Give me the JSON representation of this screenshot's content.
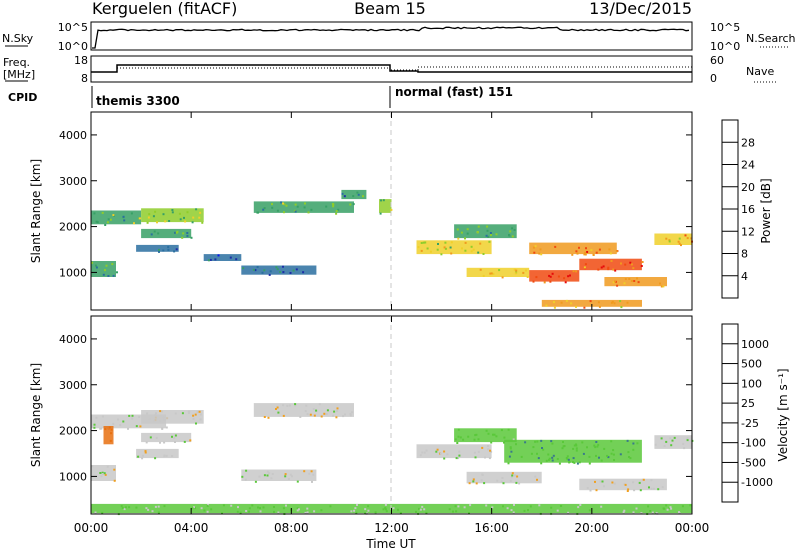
{
  "header": {
    "station": "Kerguelen (fitACF)",
    "beam": "Beam 15",
    "date": "13/Dec/2015"
  },
  "top_panels": {
    "nsky_label": "N.Sky",
    "nsearch_label": "N.Search",
    "noise_ticks_left": [
      "10^5",
      "10^0"
    ],
    "noise_ticks_right": [
      "10^5",
      "10^0"
    ],
    "freq_label_line1": "Freq.",
    "freq_label_line2": "[MHz]",
    "freq_ticks": [
      "18",
      "8"
    ],
    "nave_label": "Nave",
    "nave_ticks": [
      "60",
      "0"
    ],
    "cpid_label": "CPID",
    "cpid_segments": [
      {
        "label": "themis 3300",
        "start_hour": 0
      },
      {
        "label": "normal (fast) 151",
        "start_hour": 12
      }
    ]
  },
  "chart_data": [
    {
      "type": "heatmap",
      "ylabel": "Slant Range [km]",
      "xlabel": "",
      "x_range_hours": [
        0,
        24
      ],
      "ylim": [
        180,
        4500
      ],
      "y_ticks": [
        1000,
        2000,
        3000,
        4000
      ],
      "colorbar": {
        "label": "Power [dB]",
        "range": [
          0,
          32
        ],
        "ticks": [
          4,
          8,
          12,
          16,
          20,
          24,
          28
        ],
        "colors": [
          "#0a14f0",
          "#1d2ea8",
          "#2a6fa0",
          "#37a065",
          "#8fcd2a",
          "#f0d02a",
          "#f09a1e",
          "#f04a10",
          "#e60a0a"
        ]
      },
      "echo_regions": [
        {
          "t0": 0.0,
          "t1": 2.0,
          "r0": 2050,
          "r1": 2350,
          "value": 14
        },
        {
          "t0": 2.0,
          "t1": 4.5,
          "r0": 2100,
          "r1": 2400,
          "value": 16
        },
        {
          "t0": 2.0,
          "t1": 4.0,
          "r0": 1750,
          "r1": 1950,
          "value": 12
        },
        {
          "t0": 1.8,
          "t1": 3.5,
          "r0": 1450,
          "r1": 1600,
          "value": 9
        },
        {
          "t0": 0.0,
          "t1": 1.0,
          "r0": 900,
          "r1": 1250,
          "value": 13
        },
        {
          "t0": 4.5,
          "t1": 6.0,
          "r0": 1250,
          "r1": 1400,
          "value": 8
        },
        {
          "t0": 6.0,
          "t1": 9.0,
          "r0": 950,
          "r1": 1150,
          "value": 9
        },
        {
          "t0": 6.5,
          "t1": 10.5,
          "r0": 2300,
          "r1": 2550,
          "value": 14
        },
        {
          "t0": 10.0,
          "t1": 11.0,
          "r0": 2600,
          "r1": 2800,
          "value": 12
        },
        {
          "t0": 11.5,
          "t1": 12.0,
          "r0": 2300,
          "r1": 2600,
          "value": 17
        },
        {
          "t0": 13.0,
          "t1": 16.0,
          "r0": 1400,
          "r1": 1700,
          "value": 18
        },
        {
          "t0": 14.5,
          "t1": 17.0,
          "r0": 1750,
          "r1": 2050,
          "value": 14
        },
        {
          "t0": 15.0,
          "t1": 17.5,
          "r0": 900,
          "r1": 1100,
          "value": 20
        },
        {
          "t0": 17.5,
          "t1": 21.0,
          "r0": 1400,
          "r1": 1650,
          "value": 24
        },
        {
          "t0": 17.5,
          "t1": 19.5,
          "r0": 800,
          "r1": 1050,
          "value": 28
        },
        {
          "t0": 19.5,
          "t1": 22.0,
          "r0": 1050,
          "r1": 1300,
          "value": 26
        },
        {
          "t0": 20.5,
          "t1": 23.0,
          "r0": 700,
          "r1": 900,
          "value": 24
        },
        {
          "t0": 22.5,
          "t1": 24.0,
          "r0": 1600,
          "r1": 1850,
          "value": 20
        },
        {
          "t0": 18.0,
          "t1": 22.0,
          "r0": 250,
          "r1": 400,
          "value": 22
        }
      ]
    },
    {
      "type": "heatmap",
      "ylabel": "Slant Range [km]",
      "xlabel": "Time UT",
      "x_range_hours": [
        0,
        24
      ],
      "x_ticks": [
        "00:00",
        "04:00",
        "08:00",
        "12:00",
        "16:00",
        "20:00",
        "00:00"
      ],
      "ylim": [
        180,
        4500
      ],
      "y_ticks": [
        1000,
        2000,
        3000,
        4000
      ],
      "colorbar": {
        "label": "Velocity [m s⁻¹]",
        "tick_labels": [
          "1000",
          "500",
          "100",
          "25",
          "-25",
          "-100",
          "-500",
          "-1000"
        ],
        "colors": [
          "#1a3a9a",
          "#3a7a8a",
          "#2a8a4a",
          "#5ac83a",
          "#c8c8c8",
          "#c8c8c8",
          "#f0a020",
          "#e87010",
          "#e03010",
          "#e01010"
        ]
      },
      "echo_regions": [
        {
          "t0": 0.0,
          "t1": 3.0,
          "r0": 2050,
          "r1": 2350,
          "value": 0
        },
        {
          "t0": 2.0,
          "t1": 4.5,
          "r0": 2150,
          "r1": 2450,
          "value": 0
        },
        {
          "t0": 2.0,
          "t1": 4.0,
          "r0": 1750,
          "r1": 1950,
          "value": 0
        },
        {
          "t0": 1.8,
          "t1": 3.5,
          "r0": 1400,
          "r1": 1600,
          "value": 0
        },
        {
          "t0": 0.0,
          "t1": 1.0,
          "r0": 900,
          "r1": 1250,
          "value": 0
        },
        {
          "t0": 0.5,
          "t1": 0.9,
          "r0": 1700,
          "r1": 2100,
          "value": -300
        },
        {
          "t0": 6.0,
          "t1": 9.0,
          "r0": 900,
          "r1": 1150,
          "value": 0
        },
        {
          "t0": 6.5,
          "t1": 10.5,
          "r0": 2300,
          "r1": 2600,
          "value": 0
        },
        {
          "t0": 13.0,
          "t1": 16.0,
          "r0": 1400,
          "r1": 1700,
          "value": 0
        },
        {
          "t0": 14.5,
          "t1": 17.0,
          "r0": 1750,
          "r1": 2050,
          "value": 60
        },
        {
          "t0": 16.5,
          "t1": 22.0,
          "r0": 1300,
          "r1": 1800,
          "value": 80
        },
        {
          "t0": 15.0,
          "t1": 18.0,
          "r0": 850,
          "r1": 1100,
          "value": 0
        },
        {
          "t0": 19.5,
          "t1": 23.0,
          "r0": 700,
          "r1": 950,
          "value": 0
        },
        {
          "t0": 22.5,
          "t1": 24.0,
          "r0": 1600,
          "r1": 1900,
          "value": 20
        },
        {
          "t0": 0.0,
          "t1": 24.0,
          "r0": 200,
          "r1": 400,
          "value": 30
        }
      ]
    }
  ]
}
